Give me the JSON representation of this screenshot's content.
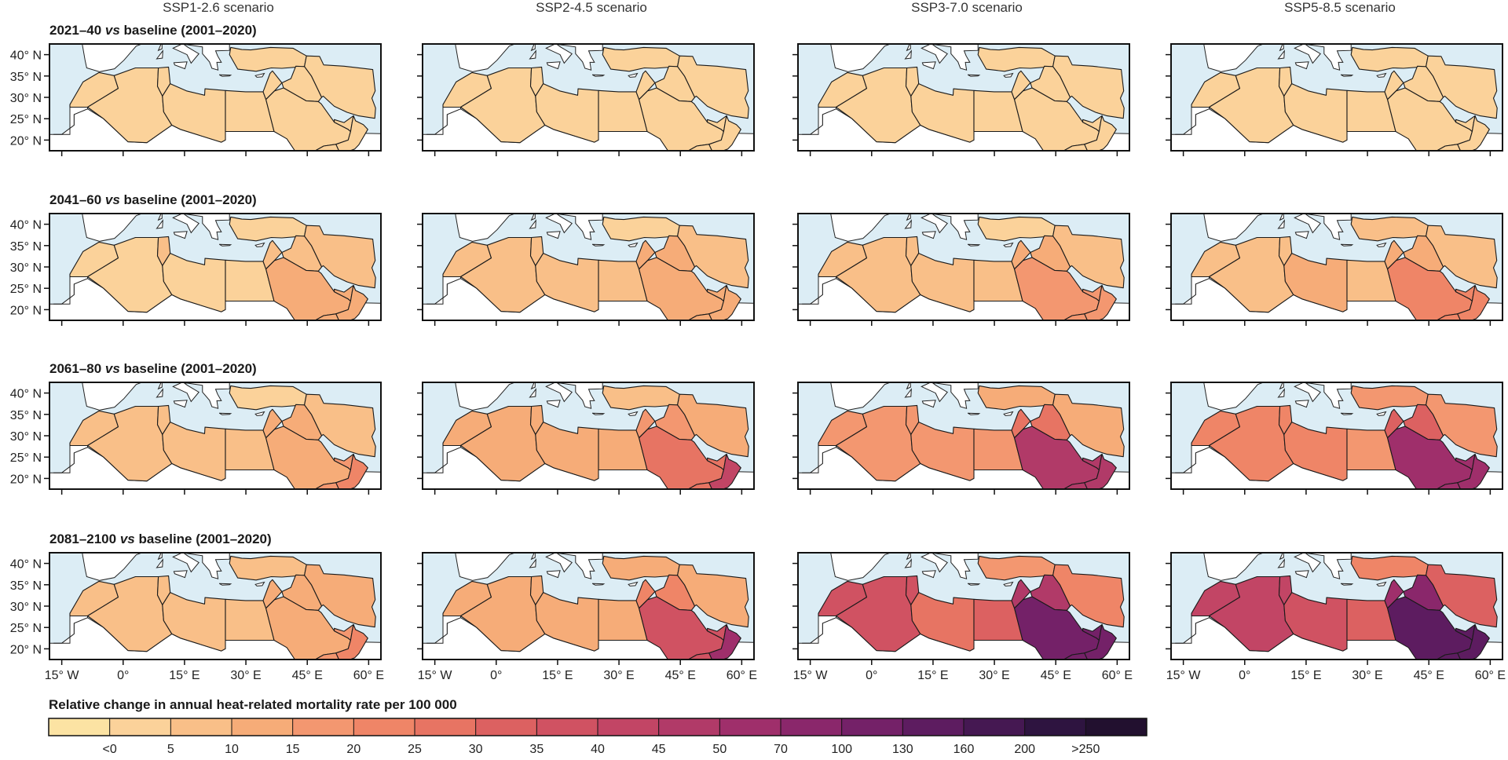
{
  "figure": {
    "columns": [
      "SSP1-2.6 scenario",
      "SSP2-4.5 scenario",
      "SSP3-7.0 scenario",
      "SSP5-8.5 scenario"
    ],
    "rows": [
      {
        "italic_prefix": "2021–40 ",
        "italic": "vs",
        "rest": " baseline (2001–2020)"
      },
      {
        "italic_prefix": "2041–60 ",
        "italic": "vs",
        "rest": " baseline (2001–2020)"
      },
      {
        "italic_prefix": "2061–80 ",
        "italic": "vs",
        "rest": " baseline (2001–2020)"
      },
      {
        "italic_prefix": "2081–2100 ",
        "italic": "vs",
        "rest": " baseline (2001–2020)"
      }
    ],
    "lat_ticks": [
      "40° N",
      "35° N",
      "30° N",
      "25° N",
      "20° N"
    ],
    "lon_ticks": [
      "15° W",
      "0°",
      "15° E",
      "30° E",
      "45° E",
      "60° E"
    ],
    "legend": {
      "title": "Relative change in annual heat-related mortality rate per 100 000",
      "labels": [
        "<0",
        "5",
        "10",
        "15",
        "20",
        "25",
        "30",
        "35",
        "40",
        "45",
        "50",
        "70",
        "100",
        "130",
        "160",
        "200",
        ">250"
      ],
      "colors": [
        "#fce3a3",
        "#fbd29a",
        "#f9bf88",
        "#f6ac78",
        "#f39770",
        "#ef8567",
        "#e77463",
        "#dc6161",
        "#d05262",
        "#c24565",
        "#b13a68",
        "#9f2f6b",
        "#8a276b",
        "#742168",
        "#5d1c60",
        "#451852",
        "#2e1440",
        "#22102f"
      ]
    },
    "map_data": {
      "regions": [
        "Morocco",
        "Algeria",
        "Tunisia",
        "Libya",
        "Egypt",
        "Levant",
        "Turkey",
        "Iran",
        "Iraq",
        "Saudi Arabia",
        "Gulf",
        "Oman",
        "Yemen"
      ],
      "class_index_by_row_col": [
        [
          {
            "Morocco": 1,
            "Algeria": 1,
            "Tunisia": 1,
            "Libya": 1,
            "Egypt": 1,
            "Levant": 1,
            "Turkey": 1,
            "Iran": 1,
            "Iraq": 1,
            "Saudi Arabia": 1,
            "Gulf": 1,
            "Oman": 1,
            "Yemen": 1
          },
          {
            "Morocco": 1,
            "Algeria": 1,
            "Tunisia": 1,
            "Libya": 1,
            "Egypt": 1,
            "Levant": 1,
            "Turkey": 1,
            "Iran": 1,
            "Iraq": 1,
            "Saudi Arabia": 1,
            "Gulf": 1,
            "Oman": 1,
            "Yemen": 1
          },
          {
            "Morocco": 1,
            "Algeria": 1,
            "Tunisia": 1,
            "Libya": 1,
            "Egypt": 1,
            "Levant": 1,
            "Turkey": 1,
            "Iran": 1,
            "Iraq": 1,
            "Saudi Arabia": 1,
            "Gulf": 1,
            "Oman": 1,
            "Yemen": 1
          },
          {
            "Morocco": 1,
            "Algeria": 1,
            "Tunisia": 1,
            "Libya": 1,
            "Egypt": 1,
            "Levant": 1,
            "Turkey": 1,
            "Iran": 1,
            "Iraq": 1,
            "Saudi Arabia": 1,
            "Gulf": 1,
            "Oman": 1,
            "Yemen": 1
          }
        ],
        [
          {
            "Morocco": 1,
            "Algeria": 1,
            "Tunisia": 2,
            "Libya": 1,
            "Egypt": 1,
            "Levant": 2,
            "Turkey": 1,
            "Iran": 2,
            "Iraq": 2,
            "Saudi Arabia": 3,
            "Gulf": 3,
            "Oman": 3,
            "Yemen": 3
          },
          {
            "Morocco": 2,
            "Algeria": 2,
            "Tunisia": 2,
            "Libya": 2,
            "Egypt": 2,
            "Levant": 3,
            "Turkey": 1,
            "Iran": 2,
            "Iraq": 3,
            "Saudi Arabia": 3,
            "Gulf": 3,
            "Oman": 3,
            "Yemen": 3
          },
          {
            "Morocco": 2,
            "Algeria": 2,
            "Tunisia": 2,
            "Libya": 2,
            "Egypt": 2,
            "Levant": 3,
            "Turkey": 1,
            "Iran": 2,
            "Iraq": 3,
            "Saudi Arabia": 4,
            "Gulf": 4,
            "Oman": 4,
            "Yemen": 4
          },
          {
            "Morocco": 2,
            "Algeria": 2,
            "Tunisia": 2,
            "Libya": 3,
            "Egypt": 2,
            "Levant": 3,
            "Turkey": 2,
            "Iran": 2,
            "Iraq": 3,
            "Saudi Arabia": 5,
            "Gulf": 5,
            "Oman": 5,
            "Yemen": 5
          }
        ],
        [
          {
            "Morocco": 2,
            "Algeria": 2,
            "Tunisia": 2,
            "Libya": 2,
            "Egypt": 2,
            "Levant": 3,
            "Turkey": 1,
            "Iran": 2,
            "Iraq": 3,
            "Saudi Arabia": 3,
            "Gulf": 4,
            "Oman": 5,
            "Yemen": 4
          },
          {
            "Morocco": 3,
            "Algeria": 3,
            "Tunisia": 3,
            "Libya": 3,
            "Egypt": 3,
            "Levant": 4,
            "Turkey": 2,
            "Iran": 3,
            "Iraq": 4,
            "Saudi Arabia": 6,
            "Gulf": 6,
            "Oman": 9,
            "Yemen": 6
          },
          {
            "Morocco": 4,
            "Algeria": 4,
            "Tunisia": 4,
            "Libya": 4,
            "Egypt": 4,
            "Levant": 6,
            "Turkey": 3,
            "Iran": 3,
            "Iraq": 6,
            "Saudi Arabia": 10,
            "Gulf": 10,
            "Oman": 10,
            "Yemen": 10
          },
          {
            "Morocco": 5,
            "Algeria": 5,
            "Tunisia": 5,
            "Libya": 5,
            "Egypt": 4,
            "Levant": 7,
            "Turkey": 4,
            "Iran": 4,
            "Iraq": 7,
            "Saudi Arabia": 11,
            "Gulf": 11,
            "Oman": 11,
            "Yemen": 11
          }
        ],
        [
          {
            "Morocco": 2,
            "Algeria": 2,
            "Tunisia": 2,
            "Libya": 2,
            "Egypt": 2,
            "Levant": 3,
            "Turkey": 2,
            "Iran": 3,
            "Iraq": 3,
            "Saudi Arabia": 3,
            "Gulf": 4,
            "Oman": 5,
            "Yemen": 4
          },
          {
            "Morocco": 3,
            "Algeria": 3,
            "Tunisia": 3,
            "Libya": 3,
            "Egypt": 3,
            "Levant": 5,
            "Turkey": 3,
            "Iran": 3,
            "Iraq": 5,
            "Saudi Arabia": 8,
            "Gulf": 8,
            "Oman": 11,
            "Yemen": 8
          },
          {
            "Morocco": 8,
            "Algeria": 8,
            "Tunisia": 8,
            "Libya": 6,
            "Egypt": 7,
            "Levant": 10,
            "Turkey": 4,
            "Iran": 5,
            "Iraq": 10,
            "Saudi Arabia": 13,
            "Gulf": 13,
            "Oman": 13,
            "Yemen": 13
          },
          {
            "Morocco": 9,
            "Algeria": 9,
            "Tunisia": 9,
            "Libya": 8,
            "Egypt": 7,
            "Levant": 11,
            "Turkey": 5,
            "Iran": 7,
            "Iraq": 12,
            "Saudi Arabia": 14,
            "Gulf": 14,
            "Oman": 14,
            "Yemen": 14
          }
        ]
      ]
    }
  }
}
